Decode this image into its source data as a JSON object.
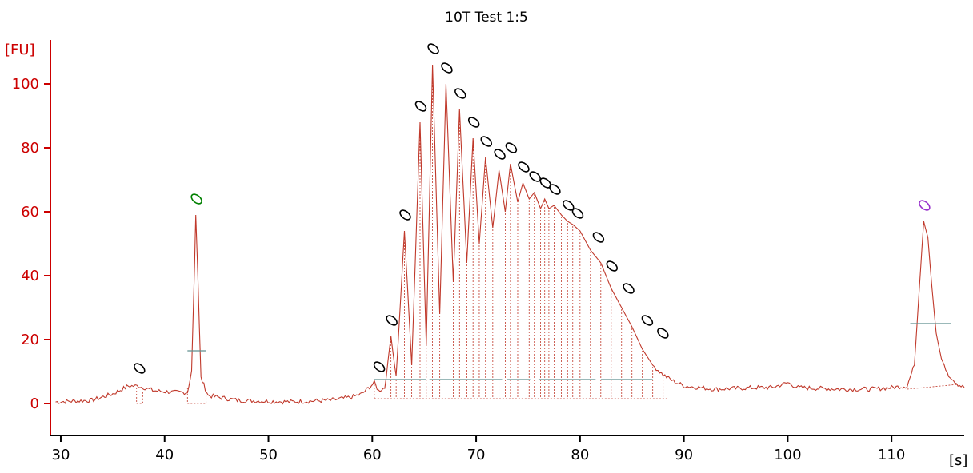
{
  "chart_data": {
    "type": "line",
    "title": "10T Test 1:5",
    "ylabel": "[FU]",
    "xlabel": "[s]",
    "xlim": [
      29,
      117
    ],
    "ylim": [
      -10,
      115
    ],
    "xticks": [
      30,
      40,
      50,
      60,
      70,
      80,
      90,
      100,
      110
    ],
    "yticks": [
      0,
      20,
      40,
      60,
      80,
      100
    ],
    "grid": false,
    "colors": {
      "trace": "#c0392b",
      "axis": "#cc0000",
      "marker_sample": "#000000",
      "marker_lower": "#008000",
      "marker_upper": "#9932cc",
      "baseline": "#5f8f8f"
    },
    "series": [
      {
        "points": [
          [
            29.5,
            0.5
          ],
          [
            33,
            1
          ],
          [
            35,
            3
          ],
          [
            36.5,
            5.5
          ],
          [
            37.5,
            5.5
          ],
          [
            39,
            4
          ],
          [
            41,
            3.5
          ],
          [
            42.2,
            3.5
          ],
          [
            42.6,
            10
          ],
          [
            42.9,
            45
          ],
          [
            43.0,
            59
          ],
          [
            43.2,
            40
          ],
          [
            43.5,
            8
          ],
          [
            44.2,
            2.5
          ],
          [
            47,
            1
          ],
          [
            52,
            0.5
          ],
          [
            56,
            1
          ],
          [
            58,
            2
          ],
          [
            59,
            3
          ],
          [
            60.2,
            6.5
          ],
          [
            60.6,
            4
          ],
          [
            61.2,
            5
          ],
          [
            61.8,
            21
          ],
          [
            62.3,
            8
          ],
          [
            63.1,
            54
          ],
          [
            63.8,
            12
          ],
          [
            64.6,
            88
          ],
          [
            65.2,
            18
          ],
          [
            65.8,
            106
          ],
          [
            66.5,
            28
          ],
          [
            67.1,
            100
          ],
          [
            67.8,
            38
          ],
          [
            68.4,
            92
          ],
          [
            69.1,
            44
          ],
          [
            69.7,
            83
          ],
          [
            70.3,
            50
          ],
          [
            70.9,
            77
          ],
          [
            71.6,
            55
          ],
          [
            72.2,
            73
          ],
          [
            72.8,
            60
          ],
          [
            73.3,
            75
          ],
          [
            74.0,
            63
          ],
          [
            74.5,
            69
          ],
          [
            75.1,
            64
          ],
          [
            75.6,
            66
          ],
          [
            76.2,
            61
          ],
          [
            76.6,
            64
          ],
          [
            77.0,
            61
          ],
          [
            77.5,
            62
          ],
          [
            78.2,
            59
          ],
          [
            78.8,
            57
          ],
          [
            79.3,
            56
          ],
          [
            80,
            54
          ],
          [
            81,
            48
          ],
          [
            82,
            44
          ],
          [
            83,
            36
          ],
          [
            84,
            30
          ],
          [
            85,
            24
          ],
          [
            86,
            17
          ],
          [
            87,
            12
          ],
          [
            88,
            9
          ],
          [
            89,
            7
          ],
          [
            90,
            5.5
          ],
          [
            93,
            4.5
          ],
          [
            97,
            5
          ],
          [
            98.5,
            5
          ],
          [
            100,
            6.5
          ],
          [
            101,
            5
          ],
          [
            105,
            4.5
          ],
          [
            108,
            4.5
          ],
          [
            110,
            5
          ],
          [
            111.5,
            5.5
          ],
          [
            112.2,
            12
          ],
          [
            112.8,
            42
          ],
          [
            113.1,
            57
          ],
          [
            113.5,
            52
          ],
          [
            113.9,
            36
          ],
          [
            114.3,
            22
          ],
          [
            114.8,
            14
          ],
          [
            115.5,
            9
          ],
          [
            116.4,
            6
          ],
          [
            117,
            5
          ]
        ]
      }
    ],
    "peak_markers": [
      {
        "x": 37.5,
        "y": 6,
        "color": "black"
      },
      {
        "x": 43.0,
        "y": 59,
        "color": "green"
      },
      {
        "x": 60.6,
        "y": 6.5,
        "color": "black"
      },
      {
        "x": 61.8,
        "y": 21,
        "color": "black"
      },
      {
        "x": 63.1,
        "y": 54,
        "color": "black"
      },
      {
        "x": 64.6,
        "y": 88,
        "color": "black"
      },
      {
        "x": 65.8,
        "y": 106,
        "color": "black"
      },
      {
        "x": 67.1,
        "y": 100,
        "color": "black"
      },
      {
        "x": 68.4,
        "y": 92,
        "color": "black"
      },
      {
        "x": 69.7,
        "y": 83,
        "color": "black"
      },
      {
        "x": 70.9,
        "y": 77,
        "color": "black"
      },
      {
        "x": 72.2,
        "y": 73,
        "color": "black"
      },
      {
        "x": 73.3,
        "y": 75,
        "color": "black"
      },
      {
        "x": 74.5,
        "y": 69,
        "color": "black"
      },
      {
        "x": 75.6,
        "y": 66,
        "color": "black"
      },
      {
        "x": 76.6,
        "y": 64,
        "color": "black"
      },
      {
        "x": 77.5,
        "y": 62,
        "color": "black"
      },
      {
        "x": 78.8,
        "y": 57,
        "color": "black"
      },
      {
        "x": 79.7,
        "y": 54.5,
        "color": "black"
      },
      {
        "x": 81.7,
        "y": 47,
        "color": "black"
      },
      {
        "x": 83.0,
        "y": 38,
        "color": "black"
      },
      {
        "x": 84.6,
        "y": 31,
        "color": "black"
      },
      {
        "x": 86.4,
        "y": 21,
        "color": "black"
      },
      {
        "x": 87.9,
        "y": 17,
        "color": "black"
      },
      {
        "x": 113.1,
        "y": 57,
        "color": "purple"
      }
    ]
  }
}
